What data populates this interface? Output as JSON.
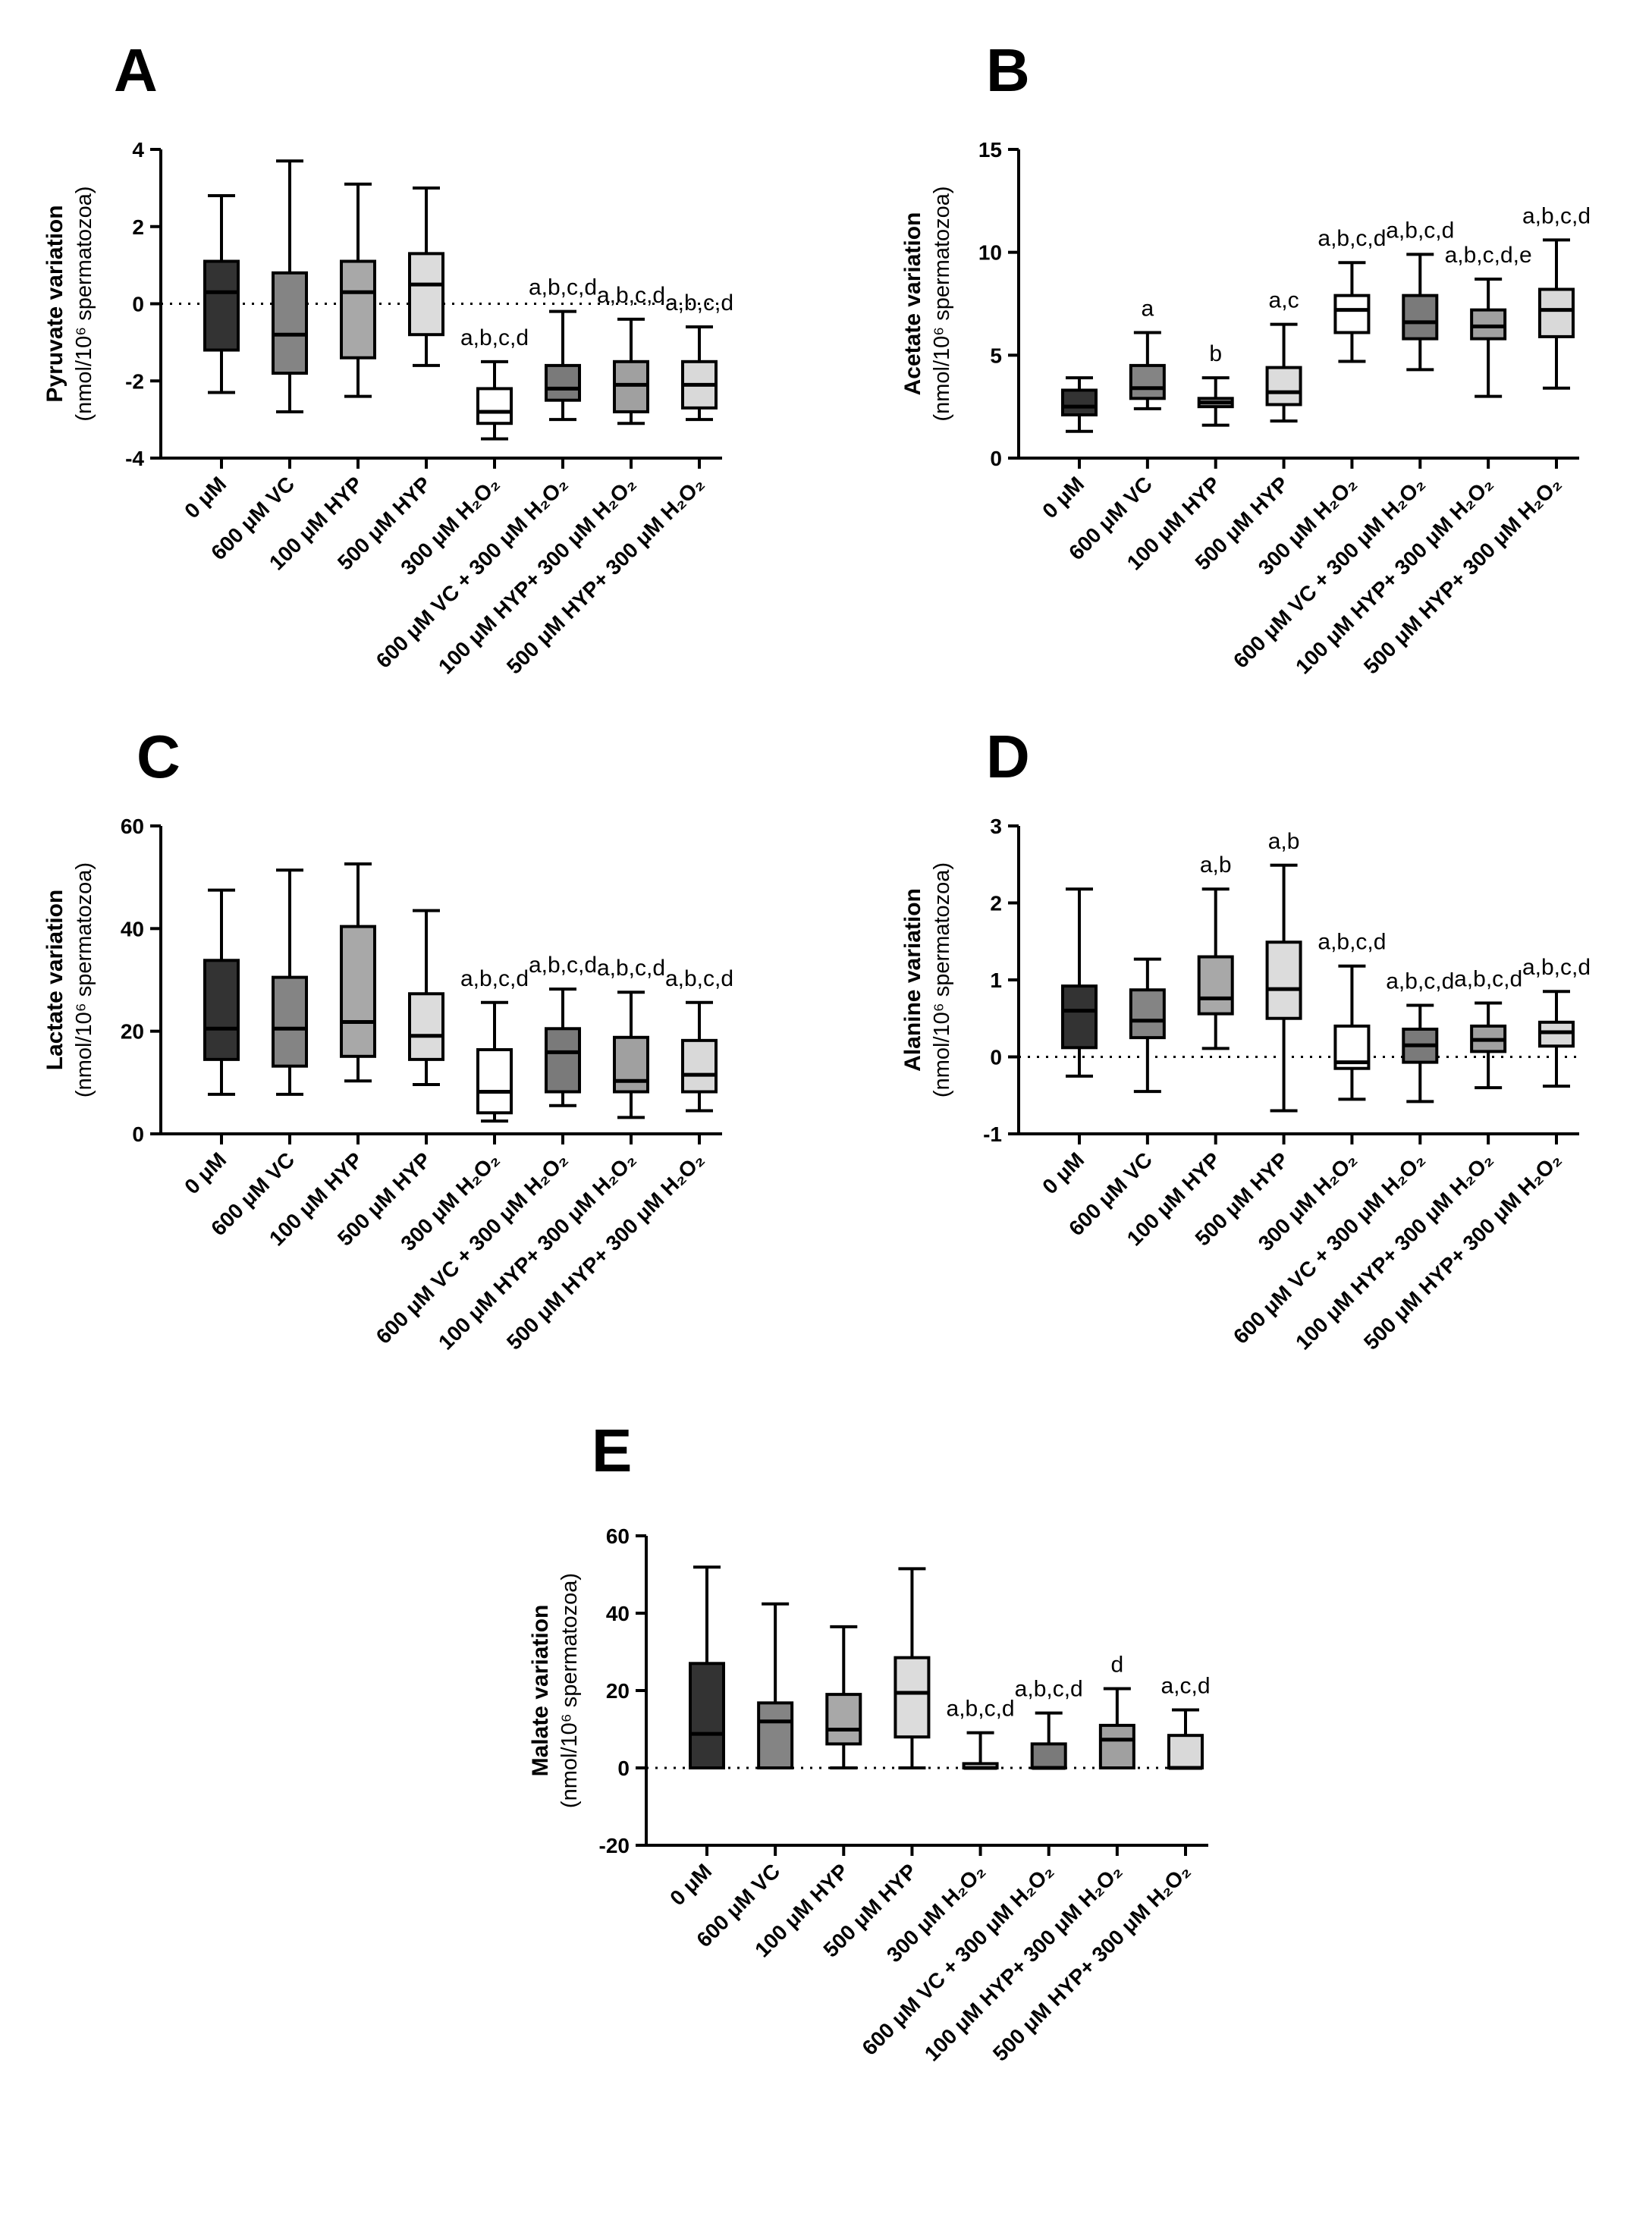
{
  "figure": {
    "panels": [
      {
        "letter": "A",
        "ylabel_main": "Pyruvate variation",
        "ylabel_unit": "(nmol/10⁶ spermatozoa)",
        "ylim": [
          -4,
          4
        ],
        "yticks": [
          -4,
          -2,
          0,
          2,
          4
        ],
        "zero_line": true
      },
      {
        "letter": "B",
        "ylabel_main": "Acetate variation",
        "ylabel_unit": "(nmol/10⁶ spermatozoa)",
        "ylim": [
          0,
          15
        ],
        "yticks": [
          0,
          5,
          10,
          15
        ],
        "zero_line": false
      },
      {
        "letter": "C",
        "ylabel_main": "Lactate variation",
        "ylabel_unit": "(nmol/10⁶ spermatozoa)",
        "ylim": [
          0,
          60
        ],
        "yticks": [
          0,
          20,
          40,
          60
        ],
        "zero_line": false
      },
      {
        "letter": "D",
        "ylabel_main": "Alanine variation",
        "ylabel_unit": "(nmol/10⁶ spermatozoa)",
        "ylim": [
          -1,
          3
        ],
        "yticks": [
          -1,
          0,
          1,
          2,
          3
        ],
        "zero_line": true
      },
      {
        "letter": "E",
        "ylabel_main": "Malate variation",
        "ylabel_unit": "(nmol/10⁶ spermatozoa)",
        "ylim": [
          -20,
          60
        ],
        "yticks": [
          -20,
          0,
          20,
          40,
          60
        ],
        "zero_line": true
      }
    ]
  },
  "chart_data": [
    {
      "type": "box",
      "panel": "A",
      "ylabel": "Pyruvate variation (nmol/10⁶ spermatozoa)",
      "ylim": [
        -4,
        4
      ],
      "categories": [
        "0 μM",
        "600 μM VC",
        "100 μM HYP",
        "500 μM HYP",
        "300 μM H₂O₂",
        "600 μM VC + 300 μM H₂O₂",
        "100 μM HYP+ 300 μM H₂O₂",
        "500 μM HYP+ 300 μM H₂O₂"
      ],
      "boxes": [
        {
          "min": -2.3,
          "q1": -1.2,
          "median": 0.3,
          "q3": 1.1,
          "max": 2.8
        },
        {
          "min": -2.8,
          "q1": -1.8,
          "median": -0.8,
          "q3": 0.8,
          "max": 3.7
        },
        {
          "min": -2.4,
          "q1": -1.4,
          "median": 0.3,
          "q3": 1.1,
          "max": 3.1
        },
        {
          "min": -1.6,
          "q1": -0.8,
          "median": 0.5,
          "q3": 1.3,
          "max": 3.0
        },
        {
          "min": -3.5,
          "q1": -3.1,
          "median": -2.8,
          "q3": -2.2,
          "max": -1.5
        },
        {
          "min": -3.0,
          "q1": -2.5,
          "median": -2.2,
          "q3": -1.6,
          "max": -0.2
        },
        {
          "min": -3.1,
          "q1": -2.8,
          "median": -2.1,
          "q3": -1.5,
          "max": -0.4
        },
        {
          "min": -3.0,
          "q1": -2.7,
          "median": -2.1,
          "q3": -1.5,
          "max": -0.6
        }
      ],
      "annotations": [
        "",
        "",
        "",
        "",
        "a,b,c,d",
        "a,b,c,d",
        "a,b,c,d",
        "a,b,c,d"
      ]
    },
    {
      "type": "box",
      "panel": "B",
      "ylabel": "Acetate variation (nmol/10⁶ spermatozoa)",
      "ylim": [
        0,
        15
      ],
      "categories": [
        "0 μM",
        "600 μM VC",
        "100 μM HYP",
        "500 μM HYP",
        "300 μM H₂O₂",
        "600 μM VC + 300 μM H₂O₂",
        "100 μM HYP+ 300 μM H₂O₂",
        "500 μM HYP+ 300 μM H₂O₂"
      ],
      "boxes": [
        {
          "min": 1.3,
          "q1": 2.1,
          "median": 2.5,
          "q3": 3.3,
          "max": 3.9
        },
        {
          "min": 2.4,
          "q1": 2.9,
          "median": 3.4,
          "q3": 4.5,
          "max": 6.1
        },
        {
          "min": 1.6,
          "q1": 2.5,
          "median": 2.7,
          "q3": 2.9,
          "max": 3.9
        },
        {
          "min": 1.8,
          "q1": 2.6,
          "median": 3.2,
          "q3": 4.4,
          "max": 6.5
        },
        {
          "min": 4.7,
          "q1": 6.1,
          "median": 7.2,
          "q3": 7.9,
          "max": 9.5
        },
        {
          "min": 4.3,
          "q1": 5.8,
          "median": 6.6,
          "q3": 7.9,
          "max": 9.9
        },
        {
          "min": 3.0,
          "q1": 5.8,
          "median": 6.4,
          "q3": 7.2,
          "max": 8.7
        },
        {
          "min": 3.4,
          "q1": 5.9,
          "median": 7.2,
          "q3": 8.2,
          "max": 10.6
        }
      ],
      "annotations": [
        "",
        "a",
        "b",
        "a,c",
        "a,b,c,d",
        "a,b,c,d",
        "a,b,c,d,e",
        "a,b,c,d"
      ]
    },
    {
      "type": "box",
      "panel": "C",
      "ylabel": "Lactate variation (nmol/10⁶ spermatozoa)",
      "ylim": [
        0,
        60
      ],
      "categories": [
        "0 μM",
        "600 μM VC",
        "100 μM HYP",
        "500 μM HYP",
        "300 μM H₂O₂",
        "600 μM VC + 300 μM H₂O₂",
        "100 μM HYP+ 300 μM H₂O₂",
        "500 μM HYP+ 300 μM H₂O₂"
      ],
      "boxes": [
        {
          "min": 7.7,
          "q1": 14.5,
          "median": 20.5,
          "q3": 33.8,
          "max": 47.5
        },
        {
          "min": 7.7,
          "q1": 13.2,
          "median": 20.5,
          "q3": 30.5,
          "max": 51.4
        },
        {
          "min": 10.3,
          "q1": 15.1,
          "median": 21.8,
          "q3": 40.4,
          "max": 52.6
        },
        {
          "min": 9.6,
          "q1": 14.5,
          "median": 19.1,
          "q3": 27.3,
          "max": 43.5
        },
        {
          "min": 2.5,
          "q1": 4.1,
          "median": 8.2,
          "q3": 16.4,
          "max": 25.6
        },
        {
          "min": 5.5,
          "q1": 8.2,
          "median": 15.9,
          "q3": 20.5,
          "max": 28.2
        },
        {
          "min": 3.2,
          "q1": 8.2,
          "median": 10.3,
          "q3": 18.8,
          "max": 27.6
        },
        {
          "min": 4.5,
          "q1": 8.2,
          "median": 11.5,
          "q3": 18.2,
          "max": 25.6
        }
      ],
      "annotations": [
        "",
        "",
        "",
        "",
        "a,b,c,d",
        "a,b,c,d",
        "a,b,c,d",
        "a,b,c,d"
      ]
    },
    {
      "type": "box",
      "panel": "D",
      "ylabel": "Alanine variation (nmol/10⁶ spermatozoa)",
      "ylim": [
        -1,
        3
      ],
      "categories": [
        "0 μM",
        "600 μM VC",
        "100 μM HYP",
        "500 μM HYP",
        "300 μM H₂O₂",
        "600 μM VC + 300 μM H₂O₂",
        "100 μM HYP+ 300 μM H₂O₂",
        "500 μM HYP+ 300 μM H₂O₂"
      ],
      "boxes": [
        {
          "min": -0.25,
          "q1": 0.12,
          "median": 0.6,
          "q3": 0.92,
          "max": 2.18
        },
        {
          "min": -0.45,
          "q1": 0.25,
          "median": 0.47,
          "q3": 0.87,
          "max": 1.27
        },
        {
          "min": 0.11,
          "q1": 0.56,
          "median": 0.76,
          "q3": 1.3,
          "max": 2.18
        },
        {
          "min": -0.7,
          "q1": 0.5,
          "median": 0.88,
          "q3": 1.49,
          "max": 2.49
        },
        {
          "min": -0.55,
          "q1": -0.15,
          "median": -0.07,
          "q3": 0.4,
          "max": 1.18
        },
        {
          "min": -0.58,
          "q1": -0.07,
          "median": 0.15,
          "q3": 0.36,
          "max": 0.67
        },
        {
          "min": -0.4,
          "q1": 0.07,
          "median": 0.22,
          "q3": 0.4,
          "max": 0.7
        },
        {
          "min": -0.38,
          "q1": 0.14,
          "median": 0.32,
          "q3": 0.45,
          "max": 0.85
        }
      ],
      "annotations": [
        "",
        "",
        "a,b",
        "a,b",
        "a,b,c,d",
        "a,b,c,d",
        "a,b,c,d",
        "a,b,c,d"
      ]
    },
    {
      "type": "box",
      "panel": "E",
      "ylabel": "Malate variation (nmol/10⁶ spermatozoa)",
      "ylim": [
        -20,
        60
      ],
      "categories": [
        "0 μM",
        "600 μM VC",
        "100 μM HYP",
        "500 μM HYP",
        "300 μM H₂O₂",
        "600 μM VC + 300 μM H₂O₂",
        "100 μM HYP+ 300 μM H₂O₂",
        "500 μM HYP+ 300 μM H₂O₂"
      ],
      "boxes": [
        {
          "min": 0.0,
          "q1": 0.0,
          "median": 8.8,
          "q3": 27.0,
          "max": 51.9
        },
        {
          "min": 0.0,
          "q1": 0.0,
          "median": 12.0,
          "q3": 16.8,
          "max": 42.4
        },
        {
          "min": 0.0,
          "q1": 6.2,
          "median": 9.9,
          "q3": 19.0,
          "max": 36.5
        },
        {
          "min": 0.0,
          "q1": 8.0,
          "median": 19.4,
          "q3": 28.5,
          "max": 51.5
        },
        {
          "min": 0.0,
          "q1": 0.0,
          "median": 0.0,
          "q3": 1.1,
          "max": 9.1
        },
        {
          "min": 0.0,
          "q1": 0.0,
          "median": 0.0,
          "q3": 6.2,
          "max": 14.2
        },
        {
          "min": 0.0,
          "q1": 0.0,
          "median": 7.3,
          "q3": 11.0,
          "max": 20.5
        },
        {
          "min": 0.0,
          "q1": 0.0,
          "median": 0.0,
          "q3": 8.4,
          "max": 15.0
        }
      ],
      "annotations": [
        "",
        "",
        "",
        "",
        "a,b,c,d",
        "a,b,c,d",
        "d",
        "a,c,d"
      ]
    }
  ],
  "colors": {
    "box_fills": [
      "#333333",
      "#848484",
      "#a8a8a8",
      "#dcdcdc",
      "#ffffff",
      "#7a7a7a",
      "#a0a0a0",
      "#d9d9d9"
    ],
    "median_on_dark": "#000000",
    "stroke": "#000000"
  }
}
